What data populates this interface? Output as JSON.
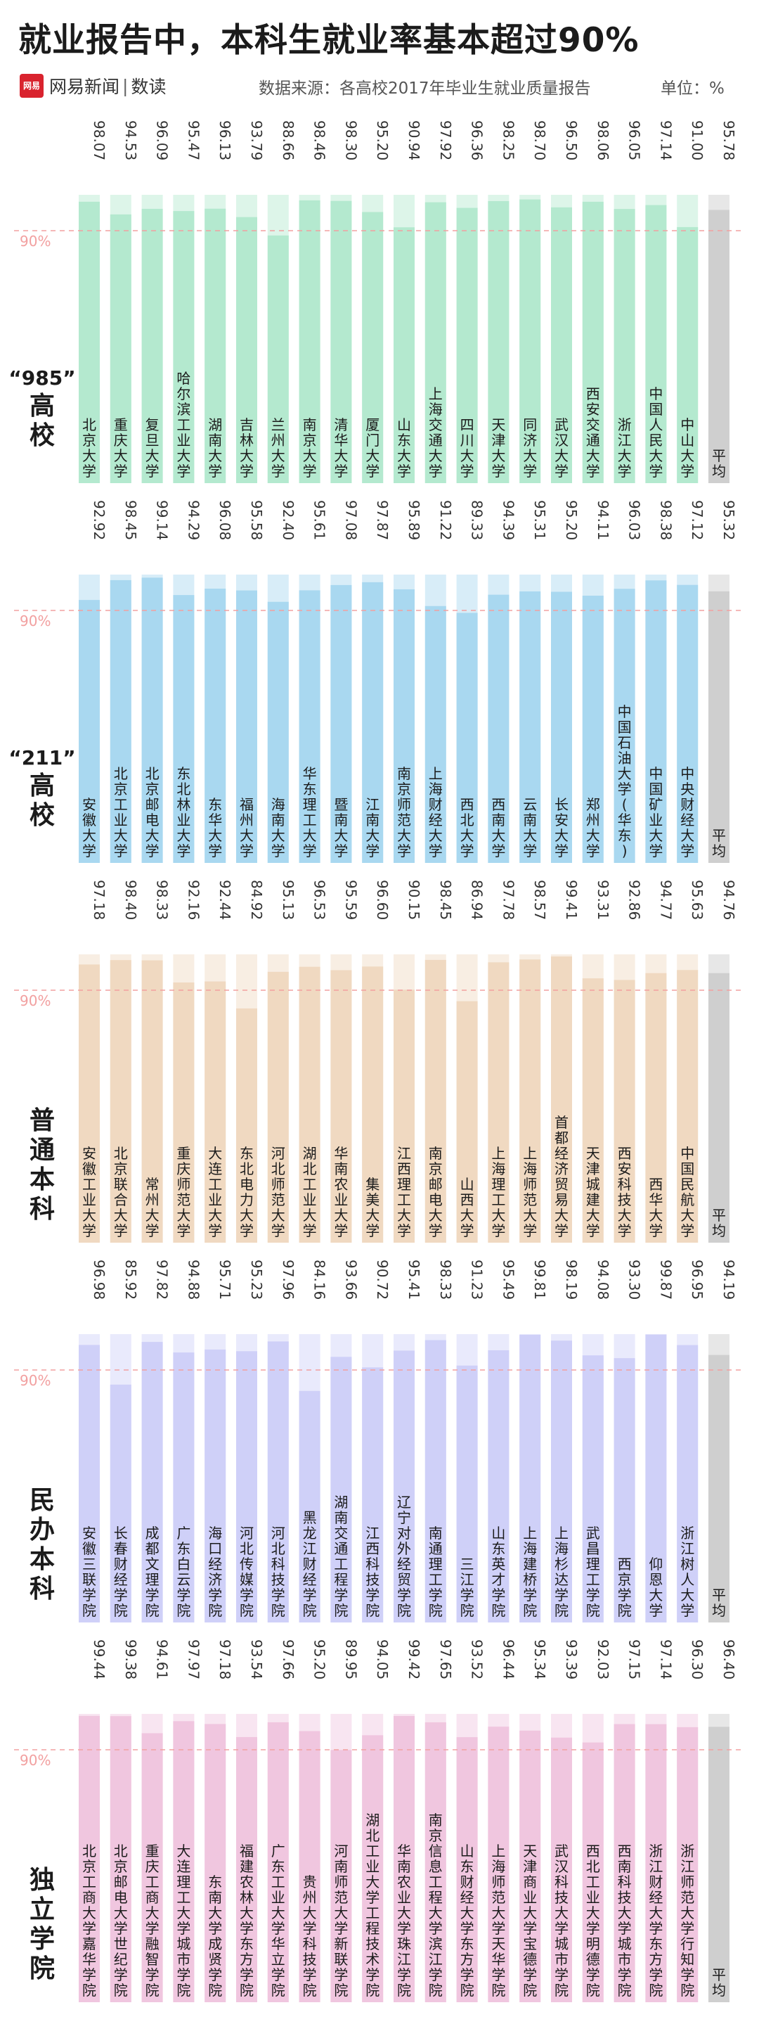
{
  "header": {
    "title": "就业报告中，本科生就业率基本超过90%",
    "brand_logo": "网易",
    "brand_name": "网易新闻",
    "brand_separator": "|",
    "brand_sub": "数读",
    "source": "数据来源：各高校2017年毕业生就业质量报告",
    "unit": "单位：%"
  },
  "colors": {
    "985": "#b4e9cf",
    "211": "#a9d8f0",
    "普通本科": "#f0d9c1",
    "民办本科": "#cfd0f8",
    "独立学院": "#f0c6df",
    "average": "#cfcfcf",
    "threshold": "#f2a0a0"
  },
  "chart_data": [
    {
      "type": "bar",
      "group": "“985” 高校",
      "group_label": [
        "“985”",
        "高",
        "校"
      ],
      "color": "#b4e9cf",
      "threshold": 90,
      "threshold_label": "90%",
      "ylim": [
        0,
        100
      ],
      "categories": [
        "北京大学",
        "重庆大学",
        "复旦大学",
        "哈尔滨工业大学",
        "湖南大学",
        "吉林大学",
        "兰州大学",
        "南京大学",
        "清华大学",
        "厦门大学",
        "山东大学",
        "上海交通大学",
        "四川大学",
        "天津大学",
        "同济大学",
        "武汉大学",
        "西安交通大学",
        "浙江大学",
        "中国人民大学",
        "中山大学",
        "平均"
      ],
      "values": [
        98.07,
        94.53,
        96.09,
        95.47,
        96.13,
        93.79,
        88.66,
        98.46,
        98.3,
        95.2,
        90.94,
        97.92,
        96.36,
        98.25,
        98.7,
        96.5,
        98.06,
        96.05,
        97.14,
        91.0,
        95.78
      ],
      "labels": [
        "98.07",
        "94.53",
        "96.09",
        "95.47",
        "96.13",
        "93.79",
        "88.66",
        "98.46",
        "98.30",
        "95.20",
        "90.94",
        "97.92",
        "96.36",
        "98.25",
        "98.70",
        "96.50",
        "98.06",
        "96.05",
        "97.14",
        "91.00",
        "95.78"
      ]
    },
    {
      "type": "bar",
      "group": "“211” 高校",
      "group_label": [
        "“211”",
        "高",
        "校"
      ],
      "color": "#a9d8f0",
      "threshold": 90,
      "threshold_label": "90%",
      "ylim": [
        0,
        100
      ],
      "categories": [
        "安徽大学",
        "北京工业大学",
        "北京邮电大学",
        "东北林业大学",
        "东华大学",
        "福州大学",
        "海南大学",
        "华东理工大学",
        "暨南大学",
        "江南大学",
        "南京师范大学",
        "上海财经大学",
        "西北大学",
        "西南大学",
        "云南大学",
        "长安大学",
        "郑州大学",
        "中国石油大学(华东)",
        "中国矿业大学",
        "中央财经大学",
        "平均"
      ],
      "values": [
        92.92,
        98.45,
        99.14,
        94.29,
        96.08,
        95.58,
        92.4,
        95.61,
        97.08,
        97.87,
        95.89,
        91.22,
        89.33,
        94.39,
        95.31,
        95.2,
        94.11,
        96.03,
        98.38,
        97.12,
        95.32
      ],
      "labels": [
        "92.92",
        "98.45",
        "99.14",
        "94.29",
        "96.08",
        "95.58",
        "92.40",
        "95.61",
        "97.08",
        "97.87",
        "95.89",
        "91.22",
        "89.33",
        "94.39",
        "95.31",
        "95.20",
        "94.11",
        "96.03",
        "98.38",
        "97.12",
        "95.32"
      ]
    },
    {
      "type": "bar",
      "group": "普通本科",
      "group_label": [
        "普",
        "通",
        "本",
        "科"
      ],
      "color": "#f0d9c1",
      "threshold": 90,
      "threshold_label": "90%",
      "ylim": [
        0,
        100
      ],
      "categories": [
        "安徽工业大学",
        "北京联合大学",
        "常州大学",
        "重庆师范大学",
        "大连工业大学",
        "东北电力大学",
        "河北师范大学",
        "湖北工业大学",
        "华南农业大学",
        "集美大学",
        "江西理工大学",
        "南京邮电大学",
        "山西大学",
        "上海理工大学",
        "上海师范大学",
        "首都经济贸易大学",
        "天津城建大学",
        "西安科技大学",
        "西华大学",
        "中国民航大学",
        "平均"
      ],
      "values": [
        97.18,
        98.4,
        98.33,
        92.16,
        92.44,
        84.92,
        95.13,
        96.53,
        95.59,
        96.6,
        90.15,
        98.45,
        86.94,
        97.78,
        98.57,
        99.41,
        93.31,
        92.86,
        94.77,
        95.63,
        94.76
      ],
      "labels": [
        "97.18",
        "98.40",
        "98.33",
        "92.16",
        "92.44",
        "84.92",
        "95.13",
        "96.53",
        "95.59",
        "96.60",
        "90.15",
        "98.45",
        "86.94",
        "97.78",
        "98.57",
        "99.41",
        "93.31",
        "92.86",
        "94.77",
        "95.63",
        "94.76"
      ]
    },
    {
      "type": "bar",
      "group": "民办本科",
      "group_label": [
        "民",
        "办",
        "本",
        "科"
      ],
      "color": "#cfd0f8",
      "threshold": 90,
      "threshold_label": "90%",
      "ylim": [
        0,
        100
      ],
      "categories": [
        "安徽三联学院",
        "长春财经学院",
        "成都文理学院",
        "广东白云学院",
        "海口经济学院",
        "河北传媒学院",
        "河北科技学院",
        "黑龙江财经学院",
        "湖南交通工程学院",
        "江西科技学院",
        "辽宁对外经贸学院",
        "南通理工学院",
        "三江学院",
        "山东英才学院",
        "上海建桥学院",
        "上海杉达学院",
        "武昌理工学院",
        "西京学院",
        "仰恩大学",
        "浙江树人大学",
        "平均"
      ],
      "values": [
        96.98,
        85.92,
        97.82,
        94.88,
        95.71,
        95.23,
        97.96,
        84.16,
        93.66,
        90.72,
        95.41,
        98.33,
        91.23,
        95.49,
        99.81,
        98.19,
        94.08,
        93.3,
        99.87,
        96.95,
        94.19
      ],
      "labels": [
        "96.98",
        "85.92",
        "97.82",
        "94.88",
        "95.71",
        "95.23",
        "97.96",
        "84.16",
        "93.66",
        "90.72",
        "95.41",
        "98.33",
        "91.23",
        "95.49",
        "99.81",
        "98.19",
        "94.08",
        "93.30",
        "99.87",
        "96.95",
        "94.19"
      ]
    },
    {
      "type": "bar",
      "group": "独立学院",
      "group_label": [
        "独",
        "立",
        "学",
        "院"
      ],
      "color": "#f0c6df",
      "threshold": 90,
      "threshold_label": "90%",
      "ylim": [
        0,
        100
      ],
      "categories": [
        "北京工商大学嘉华学院",
        "北京邮电大学世纪学院",
        "重庆工商大学融智学院",
        "大连理工大学城市学院",
        "东南大学成贤学院",
        "福建农林大学东方学院",
        "广东工业大学华立学院",
        "贵州大学科技学院",
        "河南师范大学新联学院",
        "湖北工业大学工程技术学院",
        "华南农业大学珠江学院",
        "南京信息工程大学滨江学院",
        "山东财经大学东方学院",
        "上海师范大学天华学院",
        "天津商业大学宝德学院",
        "武汉科技大学城市学院",
        "西北工业大学明德学院",
        "西南科技大学城市学院",
        "浙江财经大学东方学院",
        "浙江师范大学行知学院",
        "平均"
      ],
      "values": [
        99.44,
        99.38,
        94.61,
        97.97,
        97.18,
        93.54,
        97.66,
        95.2,
        89.95,
        94.05,
        99.42,
        97.65,
        93.52,
        96.44,
        95.34,
        93.39,
        92.03,
        97.15,
        97.14,
        96.3,
        96.4
      ],
      "labels": [
        "99.44",
        "99.38",
        "94.61",
        "97.97",
        "97.18",
        "93.54",
        "97.66",
        "95.20",
        "89.95",
        "94.05",
        "99.42",
        "97.65",
        "93.52",
        "96.44",
        "95.34",
        "93.39",
        "92.03",
        "97.15",
        "97.14",
        "96.30",
        "96.40"
      ]
    }
  ]
}
